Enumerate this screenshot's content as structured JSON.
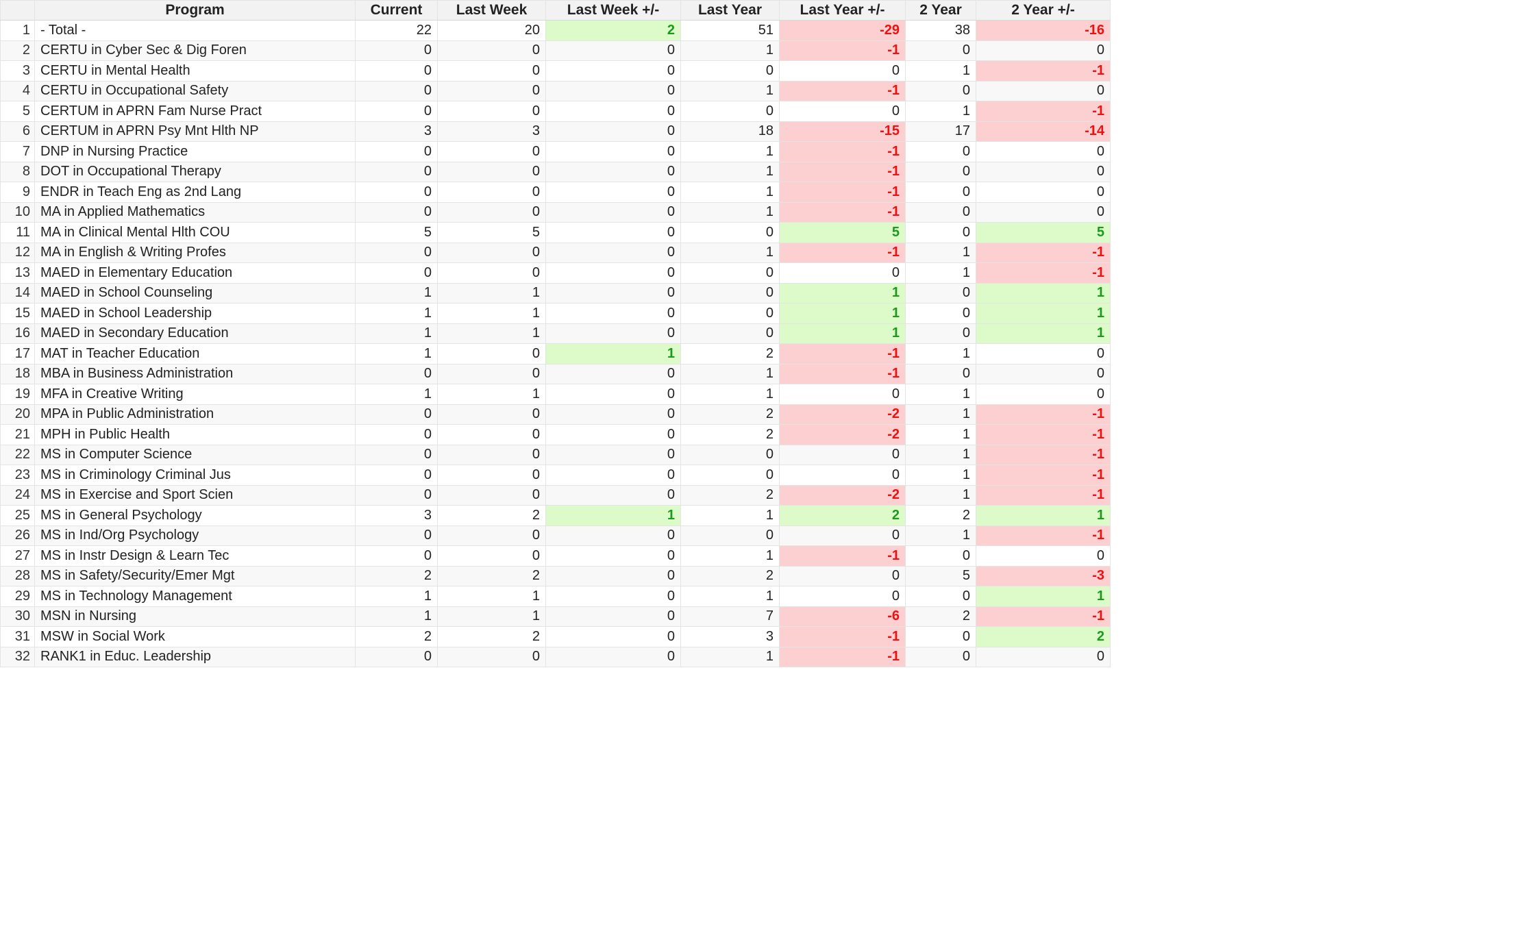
{
  "columns": [
    "",
    "Program",
    "Current",
    "Last Week",
    "Last Week +/-",
    "Last Year",
    "Last Year +/-",
    "2 Year",
    "2 Year +/-"
  ],
  "colors": {
    "positive_bg": "#dcfbc8",
    "positive_fg": "#1d9a1d",
    "negative_bg": "#fcd0d0",
    "negative_fg": "#ee1111"
  },
  "rows": [
    [
      "1",
      "- Total -",
      "22",
      "20",
      "2",
      "51",
      "-29",
      "38",
      "-16"
    ],
    [
      "2",
      "CERTU in Cyber Sec & Dig Foren",
      "0",
      "0",
      "0",
      "1",
      "-1",
      "0",
      "0"
    ],
    [
      "3",
      "CERTU in Mental Health",
      "0",
      "0",
      "0",
      "0",
      "0",
      "1",
      "-1"
    ],
    [
      "4",
      "CERTU in Occupational Safety",
      "0",
      "0",
      "0",
      "1",
      "-1",
      "0",
      "0"
    ],
    [
      "5",
      "CERTUM in APRN Fam Nurse Pract",
      "0",
      "0",
      "0",
      "0",
      "0",
      "1",
      "-1"
    ],
    [
      "6",
      "CERTUM in APRN Psy Mnt Hlth NP",
      "3",
      "3",
      "0",
      "18",
      "-15",
      "17",
      "-14"
    ],
    [
      "7",
      "DNP in Nursing Practice",
      "0",
      "0",
      "0",
      "1",
      "-1",
      "0",
      "0"
    ],
    [
      "8",
      "DOT in Occupational Therapy",
      "0",
      "0",
      "0",
      "1",
      "-1",
      "0",
      "0"
    ],
    [
      "9",
      "ENDR in Teach Eng as 2nd Lang",
      "0",
      "0",
      "0",
      "1",
      "-1",
      "0",
      "0"
    ],
    [
      "10",
      "MA in Applied Mathematics",
      "0",
      "0",
      "0",
      "1",
      "-1",
      "0",
      "0"
    ],
    [
      "11",
      "MA in Clinical Mental Hlth COU",
      "5",
      "5",
      "0",
      "0",
      "5",
      "0",
      "5"
    ],
    [
      "12",
      "MA in English & Writing Profes",
      "0",
      "0",
      "0",
      "1",
      "-1",
      "1",
      "-1"
    ],
    [
      "13",
      "MAED in Elementary Education",
      "0",
      "0",
      "0",
      "0",
      "0",
      "1",
      "-1"
    ],
    [
      "14",
      "MAED in School Counseling",
      "1",
      "1",
      "0",
      "0",
      "1",
      "0",
      "1"
    ],
    [
      "15",
      "MAED in School Leadership",
      "1",
      "1",
      "0",
      "0",
      "1",
      "0",
      "1"
    ],
    [
      "16",
      "MAED in Secondary Education",
      "1",
      "1",
      "0",
      "0",
      "1",
      "0",
      "1"
    ],
    [
      "17",
      "MAT in Teacher Education",
      "1",
      "0",
      "1",
      "2",
      "-1",
      "1",
      "0"
    ],
    [
      "18",
      "MBA in Business Administration",
      "0",
      "0",
      "0",
      "1",
      "-1",
      "0",
      "0"
    ],
    [
      "19",
      "MFA in Creative Writing",
      "1",
      "1",
      "0",
      "1",
      "0",
      "1",
      "0"
    ],
    [
      "20",
      "MPA in Public Administration",
      "0",
      "0",
      "0",
      "2",
      "-2",
      "1",
      "-1"
    ],
    [
      "21",
      "MPH in Public Health",
      "0",
      "0",
      "0",
      "2",
      "-2",
      "1",
      "-1"
    ],
    [
      "22",
      "MS in Computer Science",
      "0",
      "0",
      "0",
      "0",
      "0",
      "1",
      "-1"
    ],
    [
      "23",
      "MS in Criminology Criminal Jus",
      "0",
      "0",
      "0",
      "0",
      "0",
      "1",
      "-1"
    ],
    [
      "24",
      "MS in Exercise and Sport Scien",
      "0",
      "0",
      "0",
      "2",
      "-2",
      "1",
      "-1"
    ],
    [
      "25",
      "MS in General Psychology",
      "3",
      "2",
      "1",
      "1",
      "2",
      "2",
      "1"
    ],
    [
      "26",
      "MS in Ind/Org Psychology",
      "0",
      "0",
      "0",
      "0",
      "0",
      "1",
      "-1"
    ],
    [
      "27",
      "MS in Instr Design & Learn Tec",
      "0",
      "0",
      "0",
      "1",
      "-1",
      "0",
      "0"
    ],
    [
      "28",
      "MS in Safety/Security/Emer Mgt",
      "2",
      "2",
      "0",
      "2",
      "0",
      "5",
      "-3"
    ],
    [
      "29",
      "MS in Technology Management",
      "1",
      "1",
      "0",
      "1",
      "0",
      "0",
      "1"
    ],
    [
      "30",
      "MSN in Nursing",
      "1",
      "1",
      "0",
      "7",
      "-6",
      "2",
      "-1"
    ],
    [
      "31",
      "MSW in Social Work",
      "2",
      "2",
      "0",
      "3",
      "-1",
      "0",
      "2"
    ],
    [
      "32",
      "RANK1 in Educ. Leadership",
      "0",
      "0",
      "0",
      "1",
      "-1",
      "0",
      "0"
    ]
  ]
}
